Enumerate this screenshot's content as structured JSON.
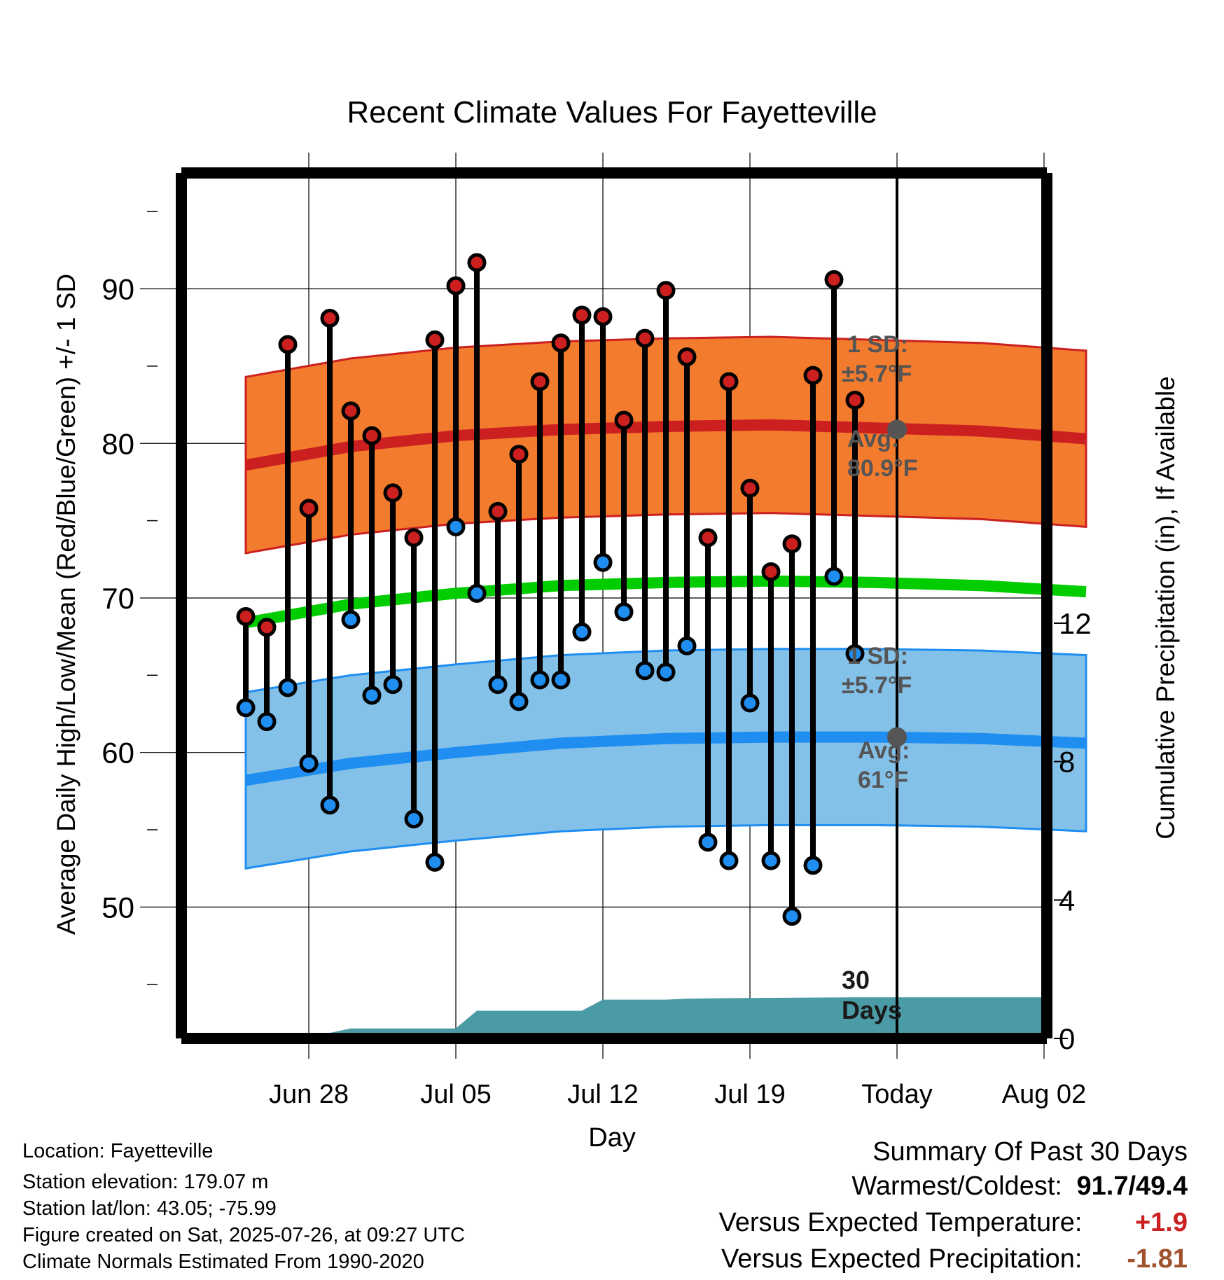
{
  "chart_data": {
    "type": "line",
    "title": "Recent Climate Values For Fayetteville",
    "xlabel": "Day",
    "ylabel_left": "Average Daily High/Low/Mean (Red/Blue/Green) +/- 1 SD",
    "ylabel_right": "Cumulative Precipitation (in), If Available",
    "x_tick_labels": [
      "Jun 28",
      "Jul 05",
      "Jul 12",
      "Jul 19",
      "Today",
      "Aug 02"
    ],
    "y_left_ticks": [
      "50",
      "60",
      "70",
      "80",
      "90"
    ],
    "y_right_ticks": [
      "0",
      "4",
      "8",
      "12"
    ],
    "ylim_left": [
      41.5,
      97.5
    ],
    "ylim_right": [
      0,
      12
    ],
    "xlim_days": [
      "2025-06-25",
      "2025-08-04"
    ],
    "today": "2025-07-26",
    "grid": true,
    "days": [
      "2025-06-26",
      "2025-06-27",
      "2025-06-28",
      "2025-06-29",
      "2025-06-30",
      "2025-07-01",
      "2025-07-02",
      "2025-07-03",
      "2025-07-04",
      "2025-07-05",
      "2025-07-06",
      "2025-07-07",
      "2025-07-08",
      "2025-07-09",
      "2025-07-10",
      "2025-07-11",
      "2025-07-12",
      "2025-07-13",
      "2025-07-14",
      "2025-07-15",
      "2025-07-16",
      "2025-07-17",
      "2025-07-18",
      "2025-07-19",
      "2025-07-20",
      "2025-07-21",
      "2025-07-22",
      "2025-07-23",
      "2025-07-24",
      "2025-07-25"
    ],
    "observed_highs": [
      68.8,
      68.1,
      86.4,
      75.8,
      88.1,
      82.1,
      80.5,
      76.8,
      73.9,
      86.7,
      90.2,
      91.7,
      75.6,
      79.3,
      84.0,
      86.5,
      88.3,
      88.2,
      81.5,
      86.8,
      89.9,
      85.6,
      73.9,
      84.0,
      77.1,
      71.7,
      73.5,
      84.4,
      90.6,
      82.8
    ],
    "observed_lows": [
      62.9,
      62.0,
      64.2,
      59.3,
      56.6,
      68.6,
      63.7,
      64.4,
      55.7,
      52.9,
      74.6,
      70.3,
      64.4,
      63.3,
      64.7,
      64.7,
      67.8,
      72.3,
      69.1,
      65.3,
      65.2,
      66.9,
      54.2,
      53.0,
      63.2,
      53.0,
      49.4,
      52.7,
      71.4,
      66.4
    ],
    "normals_days": [
      "2025-06-25",
      "2025-06-30",
      "2025-07-05",
      "2025-07-10",
      "2025-07-15",
      "2025-07-20",
      "2025-07-25",
      "2025-07-30",
      "2025-08-04"
    ],
    "normal_high": [
      78.6,
      79.8,
      80.5,
      80.9,
      81.1,
      81.2,
      81.0,
      80.8,
      80.3
    ],
    "normal_low": [
      58.2,
      59.3,
      60.0,
      60.6,
      60.9,
      61.0,
      61.0,
      60.9,
      60.6
    ],
    "normal_mean": [
      68.4,
      69.6,
      70.3,
      70.8,
      71.0,
      71.1,
      71.0,
      70.8,
      70.4
    ],
    "sd_high": 5.7,
    "sd_low": 5.7,
    "cumulative_precip_days": [
      "2025-06-26",
      "2025-06-27",
      "2025-06-28",
      "2025-06-29",
      "2025-06-30",
      "2025-07-01",
      "2025-07-02",
      "2025-07-05",
      "2025-07-06",
      "2025-07-07",
      "2025-07-12",
      "2025-07-13",
      "2025-07-16",
      "2025-07-17",
      "2025-07-20",
      "2025-07-25"
    ],
    "cumulative_precip": [
      0.0,
      0.03,
      0.03,
      0.03,
      0.15,
      0.28,
      0.28,
      0.28,
      0.28,
      0.79,
      0.79,
      1.11,
      1.11,
      1.14,
      1.16,
      1.18
    ],
    "series_colors": {
      "high": "#cc2020",
      "high_band": "#f27b2e",
      "low": "#1f8ef0",
      "low_band": "#84c1e8",
      "mean": "#00cc00",
      "precip": "#4a9ba5"
    },
    "annotations": {
      "high_sd": "1 SD:",
      "high_sd_val": "±5.7°F",
      "high_avg": "Avg:",
      "high_avg_val": "80.9°F",
      "low_sd": "1 SD:",
      "low_sd_val": "±5.7°F",
      "low_avg": "Avg:",
      "low_avg_val": "61°F",
      "precip_days_1": "30",
      "precip_days_2": "Days"
    }
  },
  "info": {
    "location": "Location: Fayetteville",
    "elevation": "Station elevation: 179.07 m",
    "latlon": "Station lat/lon: 43.05; -75.99",
    "created": "Figure created on Sat, 2025-07-26, at 09:27 UTC",
    "normals": "Climate Normals Estimated From 1990-2020"
  },
  "summary": {
    "title": "Summary Of Past 30 Days",
    "warmest_label": "Warmest/Coldest:",
    "warmest_value": "91.7/49.4",
    "temp_label": "Versus Expected Temperature:",
    "temp_value": "+1.9",
    "temp_color": "#cc2020",
    "precip_label": "Versus Expected Precipitation:",
    "precip_value": "-1.81",
    "precip_color": "#a0522d"
  }
}
